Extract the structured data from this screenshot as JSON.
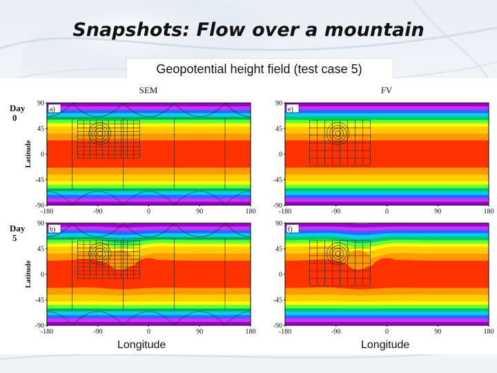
{
  "slide": {
    "title": "Snapshots: Flow over a mountain",
    "subtitle": "Geopotential height field (test case 5)"
  },
  "figure": {
    "columns": [
      "SEM",
      "FV"
    ],
    "rows": [
      {
        "label_line1": "Day",
        "label_line2": "0"
      },
      {
        "label_line1": "Day",
        "label_line2": "5"
      }
    ],
    "panel_letters": [
      "a)",
      "e)",
      "b)",
      "f)"
    ],
    "ylabel": "Latitude",
    "xlabel": "Longitude",
    "x_ticks": [
      "-180",
      "-90",
      "0",
      "90",
      "180"
    ],
    "y_ticks": [
      "90",
      "45",
      "0",
      "-45",
      "-90"
    ],
    "colormap": [
      "#9900cc",
      "#cc33ff",
      "#3366ff",
      "#00ccff",
      "#00cc66",
      "#66ff33",
      "#ffff00",
      "#ffcc00",
      "#ff9900",
      "#ff3300"
    ]
  }
}
